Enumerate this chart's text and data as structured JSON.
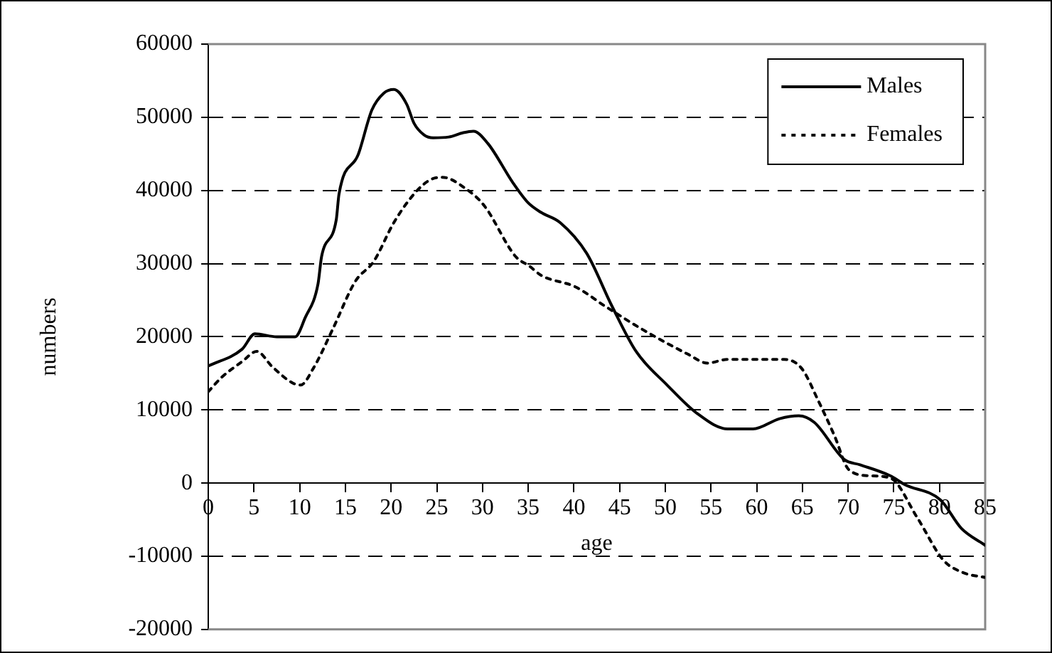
{
  "chart_data": {
    "type": "line",
    "xlabel": "age",
    "ylabel": "numbers",
    "xlim": [
      0,
      85
    ],
    "xticks": [
      0,
      5,
      10,
      15,
      20,
      25,
      30,
      35,
      40,
      45,
      50,
      55,
      60,
      65,
      70,
      75,
      80,
      85
    ],
    "ylim": [
      -20000,
      60000
    ],
    "yticks": [
      -20000,
      -10000,
      0,
      10000,
      20000,
      30000,
      40000,
      50000,
      60000
    ],
    "grid": "y",
    "legend": "top right",
    "marker": "none",
    "series": [
      {
        "name": "Males",
        "color": "#000000",
        "line_style": "solid",
        "x": [
          0,
          3.7,
          5.1,
          7.5,
          9.5,
          10.6,
          12,
          12.4,
          14,
          14.3,
          16.4,
          17.9,
          19.2,
          20.3,
          21.7,
          22.5,
          23.6,
          24.6,
          26.3,
          27.9,
          29,
          30.6,
          33.3,
          35,
          36.4,
          38.5,
          41.4,
          44.2,
          46.8,
          50.2,
          53.5,
          56.8,
          59.6,
          62.5,
          64.6,
          66.3,
          69.6,
          71.3,
          74.6,
          76.2,
          80.1,
          82.4,
          85
        ],
        "values": [
          16000,
          18300,
          20400,
          20000,
          20000,
          22600,
          27200,
          31000,
          36000,
          39500,
          44900,
          51000,
          53300,
          53800,
          51800,
          49200,
          47600,
          47200,
          47300,
          47900,
          48100,
          46400,
          41100,
          38300,
          37000,
          35600,
          31400,
          24100,
          18000,
          13400,
          9500,
          7400,
          7400,
          8800,
          9200,
          8300,
          3200,
          2500,
          1000,
          -200,
          -2300,
          -6200,
          -8500
        ]
      },
      {
        "name": "Females",
        "color": "#000000",
        "line_style": "dotted",
        "x": [
          0,
          1.5,
          3.7,
          5.3,
          7,
          9.2,
          10.1,
          11.5,
          13.6,
          16.1,
          18.1,
          20.3,
          22.5,
          24.2,
          25.6,
          28.1,
          30.2,
          33.6,
          35.2,
          36.4,
          40.2,
          43.5,
          47.5,
          52.5,
          54.6,
          56.8,
          59.6,
          63,
          64.9,
          66.8,
          68.5,
          70.1,
          72.4,
          74.6,
          77.6,
          80.4,
          82.5,
          85
        ],
        "values": [
          12500,
          14500,
          16600,
          18000,
          15900,
          13700,
          13400,
          15700,
          21000,
          27600,
          30300,
          35600,
          39500,
          41400,
          41800,
          40300,
          37900,
          31000,
          29600,
          28400,
          26800,
          24100,
          21000,
          17600,
          16400,
          16900,
          16900,
          16900,
          15700,
          11100,
          6500,
          1800,
          1000,
          700,
          -4800,
          -10500,
          -12200,
          -12900
        ]
      }
    ]
  }
}
